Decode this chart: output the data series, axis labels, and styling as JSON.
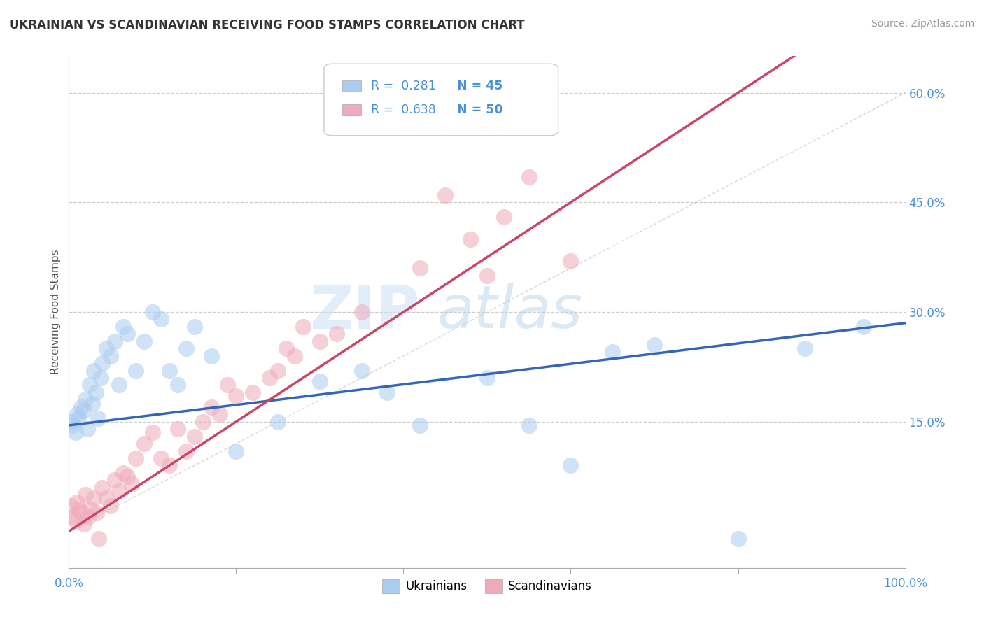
{
  "title": "UKRAINIAN VS SCANDINAVIAN RECEIVING FOOD STAMPS CORRELATION CHART",
  "source": "Source: ZipAtlas.com",
  "ylabel": "Receiving Food Stamps",
  "xlim": [
    0,
    100
  ],
  "ylim": [
    -5,
    65
  ],
  "xticklabels": [
    "0.0%",
    "100.0%"
  ],
  "ytick_positions": [
    15,
    30,
    45,
    60
  ],
  "ytick_labels": [
    "15.0%",
    "30.0%",
    "45.0%",
    "60.0%"
  ],
  "ukrainian_color": "#aaccf0",
  "scandinavian_color": "#f0aabb",
  "trend_ukrainian_color": "#3366bb",
  "trend_scandinavian_color": "#cc4466",
  "watermark_zip": "ZIP",
  "watermark_atlas": "atlas",
  "legend_R_ukrainian": "0.281",
  "legend_N_ukrainian": "45",
  "legend_R_scandinavian": "0.638",
  "legend_N_scandinavian": "50",
  "ukrainian_points_x": [
    0.3,
    0.5,
    0.8,
    1.0,
    1.2,
    1.5,
    1.8,
    2.0,
    2.2,
    2.5,
    2.8,
    3.0,
    3.2,
    3.5,
    3.8,
    4.0,
    4.5,
    5.0,
    5.5,
    6.0,
    6.5,
    7.0,
    8.0,
    9.0,
    10.0,
    11.0,
    12.0,
    13.0,
    14.0,
    15.0,
    17.0,
    20.0,
    25.0,
    30.0,
    35.0,
    38.0,
    42.0,
    50.0,
    55.0,
    60.0,
    65.0,
    70.0,
    80.0,
    88.0,
    95.0
  ],
  "ukrainian_points_y": [
    15.0,
    14.5,
    13.5,
    16.0,
    15.5,
    17.0,
    16.5,
    18.0,
    14.0,
    20.0,
    17.5,
    22.0,
    19.0,
    15.5,
    21.0,
    23.0,
    25.0,
    24.0,
    26.0,
    20.0,
    28.0,
    27.0,
    22.0,
    26.0,
    30.0,
    29.0,
    22.0,
    20.0,
    25.0,
    28.0,
    24.0,
    11.0,
    15.0,
    20.5,
    22.0,
    19.0,
    14.5,
    21.0,
    14.5,
    9.0,
    24.5,
    25.5,
    -1.0,
    25.0,
    28.0
  ],
  "scandinavian_points_x": [
    0.2,
    0.5,
    0.8,
    1.0,
    1.2,
    1.5,
    1.8,
    2.0,
    2.3,
    2.6,
    3.0,
    3.3,
    3.6,
    4.0,
    4.5,
    5.0,
    5.5,
    6.0,
    6.5,
    7.0,
    7.5,
    8.0,
    9.0,
    10.0,
    11.0,
    12.0,
    13.0,
    14.0,
    15.0,
    16.0,
    17.0,
    18.0,
    19.0,
    20.0,
    22.0,
    24.0,
    25.0,
    26.0,
    27.0,
    28.0,
    30.0,
    32.0,
    35.0,
    42.0,
    45.0,
    48.0,
    50.0,
    52.0,
    55.0,
    60.0
  ],
  "scandinavian_points_y": [
    3.5,
    2.0,
    1.5,
    4.0,
    3.0,
    2.5,
    1.0,
    5.0,
    2.0,
    3.0,
    4.5,
    2.5,
    -1.0,
    6.0,
    4.5,
    3.5,
    7.0,
    5.5,
    8.0,
    7.5,
    6.5,
    10.0,
    12.0,
    13.5,
    10.0,
    9.0,
    14.0,
    11.0,
    13.0,
    15.0,
    17.0,
    16.0,
    20.0,
    18.5,
    19.0,
    21.0,
    22.0,
    25.0,
    24.0,
    28.0,
    26.0,
    27.0,
    30.0,
    36.0,
    46.0,
    40.0,
    35.0,
    43.0,
    48.5,
    37.0
  ]
}
